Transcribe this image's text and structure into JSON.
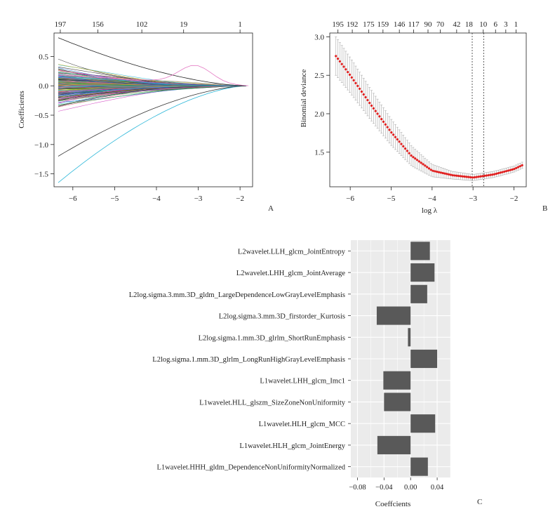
{
  "chart_data": [
    {
      "id": "A",
      "type": "line",
      "panel_label": "A",
      "xlabel": "",
      "ylabel": "Coefficients",
      "xlim": [
        -6.45,
        -1.7
      ],
      "ylim": [
        -1.72,
        0.9
      ],
      "x_ticks": [
        -6,
        -5,
        -4,
        -3,
        -2
      ],
      "y_ticks": [
        -1.5,
        -1.0,
        -0.5,
        0.0,
        0.5
      ],
      "y_tick_labels": [
        "−1.5",
        "−1.0",
        "−0.5",
        "0.0",
        "0.5"
      ],
      "x_tick_labels": [
        "−6",
        "−5",
        "−4",
        "−3",
        "−2"
      ],
      "top_axis_values": [
        -6.3,
        -5.4,
        -4.35,
        -3.35,
        -2.0
      ],
      "top_axis_labels": [
        "197",
        "156",
        "102",
        "19",
        "1"
      ],
      "n_paths_shown": 197,
      "converge_lambda": -1.85,
      "notable_paths": [
        {
          "start": 0.82,
          "color": "#222222"
        },
        {
          "start": -1.65,
          "color": "#29b6d8"
        },
        {
          "start": -1.2,
          "color": "#333333"
        },
        {
          "start": 0.2,
          "color": "#e377c2",
          "bump": 0.3
        }
      ],
      "palette": [
        "#222222",
        "#e06080",
        "#2e9e3e",
        "#2060c8",
        "#29b6d8",
        "#d040c0",
        "#c8b020",
        "#888888"
      ]
    },
    {
      "id": "B",
      "type": "scatter",
      "panel_label": "B",
      "xlabel": "log λ",
      "ylabel": "Binomial deviance",
      "xlim": [
        -6.5,
        -1.7
      ],
      "ylim": [
        1.05,
        3.05
      ],
      "x_ticks": [
        -6,
        -5,
        -4,
        -3,
        -2
      ],
      "x_tick_labels": [
        "−6",
        "−5",
        "−4",
        "−3",
        "−2"
      ],
      "y_ticks": [
        1.5,
        2.0,
        2.5,
        3.0
      ],
      "y_tick_labels": [
        "1.5",
        "2.0",
        "2.5",
        "3.0"
      ],
      "top_axis_values": [
        -6.3,
        -5.95,
        -5.55,
        -5.2,
        -4.8,
        -4.45,
        -4.1,
        -3.8,
        -3.4,
        -3.1,
        -2.75,
        -2.45,
        -2.2,
        -1.95
      ],
      "top_axis_labels": [
        "195",
        "192",
        "175",
        "159",
        "146",
        "117",
        "90",
        "70",
        "42",
        "18",
        "10",
        "6",
        "3",
        "1"
      ],
      "curve": {
        "x": [
          -6.35,
          -6.0,
          -5.5,
          -5.0,
          -4.5,
          -4.0,
          -3.5,
          -3.0,
          -2.5,
          -2.0,
          -1.8
        ],
        "y": [
          2.75,
          2.5,
          2.12,
          1.76,
          1.45,
          1.26,
          1.2,
          1.17,
          1.21,
          1.28,
          1.33
        ],
        "se": [
          0.25,
          0.23,
          0.2,
          0.17,
          0.13,
          0.08,
          0.05,
          0.04,
          0.04,
          0.04,
          0.04
        ]
      },
      "lambda_min": -3.02,
      "lambda_1se": -2.74,
      "point_color": "#e02020",
      "errorbar_color": "#aaaaaa"
    },
    {
      "id": "C",
      "type": "bar",
      "orientation": "horizontal",
      "panel_label": "C",
      "xlabel": "Coeffcients",
      "xlim": [
        -0.09,
        0.06
      ],
      "x_ticks": [
        -0.08,
        -0.04,
        0.0,
        0.04
      ],
      "x_tick_labels": [
        "−0.08",
        "−0.04",
        "0.00",
        "0.04"
      ],
      "bar_color": "#595959",
      "categories": [
        "L2wavelet.LLH_glcm_JointEntropy",
        "L2wavelet.LHH_glcm_JointAverage",
        "L2log.sigma.3.mm.3D_gldm_LargeDependenceLowGrayLevelEmphasis",
        "L2log.sigma.3.mm.3D_firstorder_Kurtosis",
        "L2log.sigma.1.mm.3D_glrlm_ShortRunEmphasis",
        "L2log.sigma.1.mm.3D_glrlm_LongRunHighGrayLevelEmphasis",
        "L1wavelet.LHH_glcm_Imc1",
        "L1wavelet.HLL_glszm_SizeZoneNonUniformity",
        "L1wavelet.HLH_glcm_MCC",
        "L1wavelet.HLH_glcm_JointEnergy",
        "L1wavelet.HHH_gldm_DependenceNonUniformityNormalized"
      ],
      "values": [
        0.029,
        0.036,
        0.025,
        -0.051,
        -0.004,
        0.04,
        -0.041,
        -0.04,
        0.037,
        -0.05,
        0.026
      ]
    }
  ]
}
